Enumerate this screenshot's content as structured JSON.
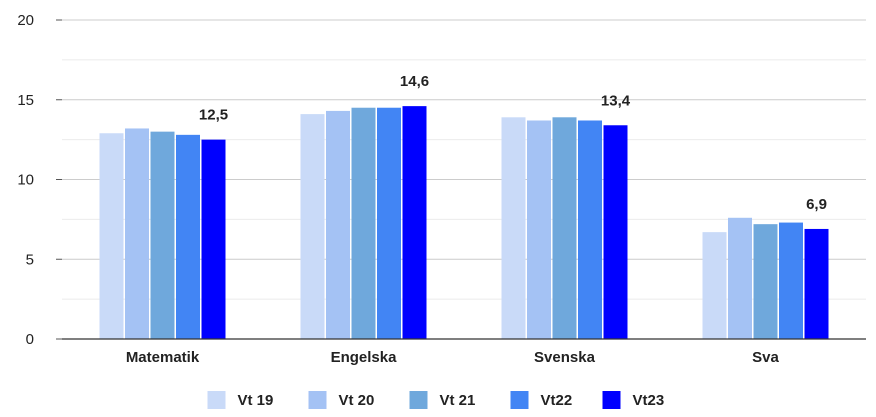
{
  "chart_data": {
    "type": "bar",
    "categories": [
      "Matematik",
      "Engelska",
      "Svenska",
      "Sva"
    ],
    "series": [
      {
        "name": "Vt 19",
        "color": "#c9daf8",
        "values": [
          12.9,
          14.1,
          13.9,
          6.7
        ]
      },
      {
        "name": "Vt 20",
        "color": "#a4c2f4",
        "values": [
          13.2,
          14.3,
          13.7,
          7.6
        ]
      },
      {
        "name": "Vt 21",
        "color": "#6fa8dc",
        "values": [
          13.0,
          14.5,
          13.9,
          7.2
        ]
      },
      {
        "name": "Vt22",
        "color": "#4285f4",
        "values": [
          12.8,
          14.5,
          13.7,
          7.3
        ]
      },
      {
        "name": "Vt23",
        "color": "#0000ff",
        "values": [
          12.5,
          14.6,
          13.4,
          6.9
        ]
      }
    ],
    "data_labels": [
      "12,5",
      "14,6",
      "13,4",
      "6,9"
    ],
    "data_label_series": "Vt23",
    "y_ticks": [
      "0",
      "5",
      "10",
      "15",
      "20"
    ],
    "ylim": [
      0,
      20
    ],
    "grid": true,
    "minor_grid_step": 2.5,
    "legend_position": "bottom-center",
    "title": "",
    "xlabel": "",
    "ylabel": ""
  }
}
